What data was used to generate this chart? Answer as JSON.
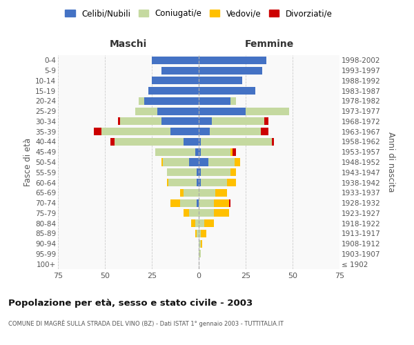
{
  "age_groups": [
    "100+",
    "95-99",
    "90-94",
    "85-89",
    "80-84",
    "75-79",
    "70-74",
    "65-69",
    "60-64",
    "55-59",
    "50-54",
    "45-49",
    "40-44",
    "35-39",
    "30-34",
    "25-29",
    "20-24",
    "15-19",
    "10-14",
    "5-9",
    "0-4"
  ],
  "birth_years": [
    "≤ 1902",
    "1903-1907",
    "1908-1912",
    "1913-1917",
    "1918-1922",
    "1923-1927",
    "1928-1932",
    "1933-1937",
    "1938-1942",
    "1943-1947",
    "1948-1952",
    "1953-1957",
    "1958-1962",
    "1963-1967",
    "1968-1972",
    "1973-1977",
    "1978-1982",
    "1983-1987",
    "1988-1992",
    "1993-1997",
    "1998-2002"
  ],
  "males": {
    "celibi": [
      0,
      0,
      0,
      0,
      0,
      0,
      1,
      0,
      1,
      1,
      5,
      2,
      8,
      15,
      20,
      22,
      29,
      27,
      25,
      20,
      25
    ],
    "coniugati": [
      0,
      0,
      0,
      1,
      2,
      5,
      9,
      8,
      15,
      16,
      14,
      21,
      37,
      37,
      22,
      12,
      3,
      0,
      0,
      0,
      0
    ],
    "vedovi": [
      0,
      0,
      0,
      1,
      2,
      3,
      5,
      2,
      1,
      0,
      1,
      0,
      0,
      0,
      0,
      0,
      0,
      0,
      0,
      0,
      0
    ],
    "divorziati": [
      0,
      0,
      0,
      0,
      0,
      0,
      0,
      0,
      0,
      0,
      0,
      0,
      2,
      4,
      1,
      0,
      0,
      0,
      0,
      0,
      0
    ]
  },
  "females": {
    "nubili": [
      0,
      0,
      0,
      0,
      0,
      0,
      0,
      0,
      1,
      1,
      5,
      1,
      1,
      6,
      7,
      25,
      17,
      30,
      23,
      34,
      36
    ],
    "coniugate": [
      0,
      1,
      1,
      1,
      3,
      8,
      8,
      9,
      14,
      16,
      14,
      16,
      38,
      27,
      28,
      23,
      3,
      0,
      0,
      0,
      0
    ],
    "vedove": [
      0,
      0,
      1,
      3,
      5,
      8,
      8,
      6,
      5,
      3,
      3,
      1,
      0,
      0,
      0,
      0,
      0,
      0,
      0,
      0,
      0
    ],
    "divorziate": [
      0,
      0,
      0,
      0,
      0,
      0,
      1,
      0,
      0,
      0,
      0,
      2,
      1,
      4,
      2,
      0,
      0,
      0,
      0,
      0,
      0
    ]
  },
  "color_celibi": "#4472c4",
  "color_coniugati": "#c5d9a0",
  "color_vedovi": "#ffc000",
  "color_divorziati": "#cc0000",
  "xlim": 75,
  "title": "Popolazione per età, sesso e stato civile - 2003",
  "subtitle": "COMUNE DI MAGRÈ SULLA STRADA DEL VINO (BZ) - Dati ISTAT 1° gennaio 2003 - TUTTITALIA.IT",
  "ylabel_left": "Fasce di età",
  "ylabel_right": "Anni di nascita",
  "xlabel_maschi": "Maschi",
  "xlabel_femmine": "Femmine",
  "bg_color": "#ffffff",
  "plot_bg": "#f9f9f9"
}
